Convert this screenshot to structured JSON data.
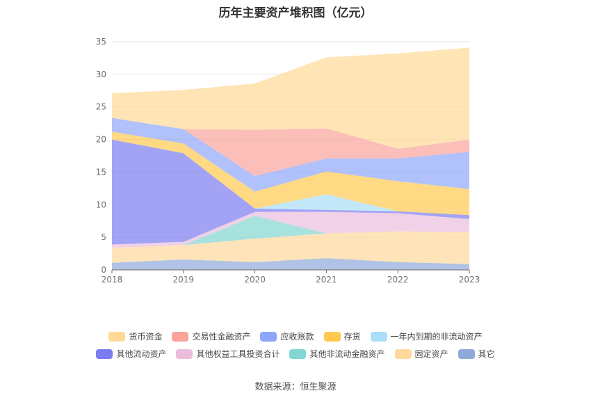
{
  "chart_data": {
    "type": "area",
    "title": "历年主要资产堆积图（亿元）",
    "source": "数据来源：恒生聚源",
    "categories": [
      "2018",
      "2019",
      "2020",
      "2021",
      "2022",
      "2023"
    ],
    "ylim": [
      0,
      35
    ],
    "yticks": [
      "0",
      "5",
      "10",
      "15",
      "20",
      "25",
      "30",
      "35"
    ],
    "grid": true,
    "legend_position": "bottom",
    "series": [
      {
        "name": "其它",
        "color": "#8eaad9",
        "values": [
          1.1,
          1.6,
          1.2,
          1.8,
          1.2,
          0.9
        ]
      },
      {
        "name": "固定资产",
        "color": "#ffd89b",
        "values": [
          2.3,
          2.2,
          3.6,
          3.8,
          4.7,
          4.9
        ]
      },
      {
        "name": "其他非流动金融资产",
        "color": "#83d6d1",
        "values": [
          0.0,
          0.0,
          3.5,
          0.0,
          0.0,
          0.0
        ]
      },
      {
        "name": "其他权益工具投资合计",
        "color": "#ebbddd",
        "values": [
          0.5,
          0.5,
          0.6,
          3.3,
          2.8,
          2.0
        ]
      },
      {
        "name": "其他流动资产",
        "color": "#7b7cf1",
        "values": [
          16.1,
          13.6,
          0.5,
          0.3,
          0.3,
          0.6
        ]
      },
      {
        "name": "一年内到期的非流动资产",
        "color": "#a9def8",
        "values": [
          0.0,
          0.0,
          0.0,
          2.4,
          0.0,
          0.0
        ]
      },
      {
        "name": "存货",
        "color": "#ffc94f",
        "values": [
          1.2,
          1.5,
          2.6,
          3.5,
          4.6,
          4.0
        ]
      },
      {
        "name": "应收账款",
        "color": "#8ea6fa",
        "values": [
          2.1,
          2.2,
          2.4,
          2.0,
          3.5,
          5.7
        ]
      },
      {
        "name": "交易性金融资产",
        "color": "#f9a39a",
        "values": [
          0.0,
          0.0,
          7.1,
          4.6,
          1.5,
          1.9
        ]
      },
      {
        "name": "货币资金",
        "color": "#ffd995",
        "values": [
          3.8,
          6.0,
          7.1,
          10.9,
          14.6,
          14.1
        ]
      }
    ],
    "legend_rows": [
      [
        "货币资金",
        "交易性金融资产",
        "应收账款",
        "存货",
        "一年内到期的非流动资产"
      ],
      [
        "其他流动资产",
        "其他权益工具投资合计",
        "其他非流动金融资产",
        "固定资产",
        "其它"
      ]
    ]
  }
}
